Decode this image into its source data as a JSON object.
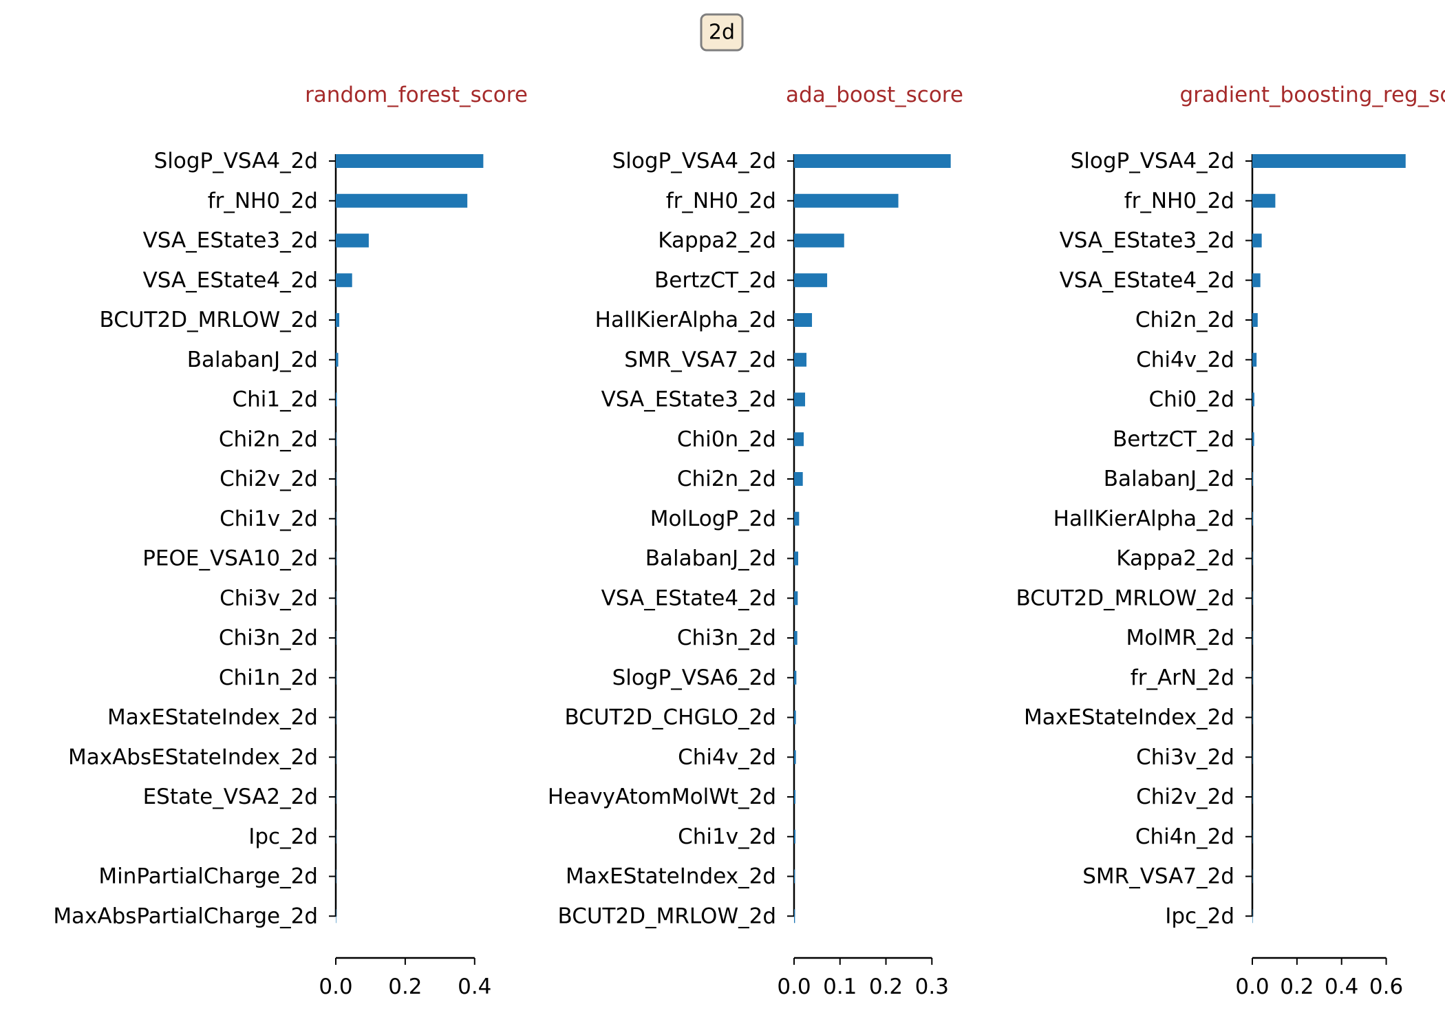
{
  "figure": {
    "badge_label": "2d",
    "colors": {
      "bar": "#1f77b4",
      "title": "#a52a2a",
      "axis": "#000000",
      "badge_fill": "#f7ead3",
      "badge_stroke": "#7f7f7f"
    }
  },
  "chart_data": [
    {
      "type": "bar",
      "orientation": "horizontal",
      "title": "random_forest_score",
      "xlabel": "",
      "ylabel": "",
      "xlim": [
        0,
        0.45
      ],
      "xticks": [
        "0.0",
        "0.2",
        "0.4"
      ],
      "xtick_values": [
        0,
        0.2,
        0.4
      ],
      "grid": false,
      "categories": [
        "SlogP_VSA4_2d",
        "fr_NH0_2d",
        "VSA_EState3_2d",
        "VSA_EState4_2d",
        "BCUT2D_MRLOW_2d",
        "BalabanJ_2d",
        "Chi1_2d",
        "Chi2n_2d",
        "Chi2v_2d",
        "Chi1v_2d",
        "PEOE_VSA10_2d",
        "Chi3v_2d",
        "Chi3n_2d",
        "Chi1n_2d",
        "MaxEStateIndex_2d",
        "MaxAbsEStateIndex_2d",
        "EState_VSA2_2d",
        "Ipc_2d",
        "MinPartialCharge_2d",
        "MaxAbsPartialCharge_2d"
      ],
      "values": [
        0.425,
        0.379,
        0.095,
        0.047,
        0.01,
        0.007,
        0.003,
        0.0015,
        0.001,
        0.001,
        0.0008,
        0.0006,
        0.0005,
        0.0004,
        0.0003,
        0.0003,
        0.0002,
        0.0002,
        0.0001,
        0.0001
      ]
    },
    {
      "type": "bar",
      "orientation": "horizontal",
      "title": "ada_boost_score",
      "xlabel": "",
      "ylabel": "",
      "xlim": [
        0,
        0.34
      ],
      "xticks": [
        "0.0",
        "0.1",
        "0.2",
        "0.3"
      ],
      "xtick_values": [
        0,
        0.1,
        0.2,
        0.3
      ],
      "grid": false,
      "categories": [
        "SlogP_VSA4_2d",
        "fr_NH0_2d",
        "Kappa2_2d",
        "BertzCT_2d",
        "HallKierAlpha_2d",
        "SMR_VSA7_2d",
        "VSA_EState3_2d",
        "Chi0n_2d",
        "Chi2n_2d",
        "MolLogP_2d",
        "BalabanJ_2d",
        "VSA_EState4_2d",
        "Chi3n_2d",
        "SlogP_VSA6_2d",
        "BCUT2D_CHGLO_2d",
        "Chi4v_2d",
        "HeavyAtomMolWt_2d",
        "Chi1v_2d",
        "MaxEStateIndex_2d",
        "BCUT2D_MRLOW_2d"
      ],
      "values": [
        0.341,
        0.227,
        0.109,
        0.072,
        0.039,
        0.027,
        0.024,
        0.021,
        0.019,
        0.011,
        0.009,
        0.008,
        0.007,
        0.005,
        0.004,
        0.004,
        0.003,
        0.003,
        0.002,
        0.002
      ]
    },
    {
      "type": "bar",
      "orientation": "horizontal",
      "title": "gradient_boosting_reg_score",
      "xlabel": "",
      "ylabel": "",
      "xlim": [
        0,
        0.7
      ],
      "xticks": [
        "0.0",
        "0.2",
        "0.4",
        "0.6"
      ],
      "xtick_values": [
        0,
        0.2,
        0.4,
        0.6
      ],
      "grid": false,
      "categories": [
        "SlogP_VSA4_2d",
        "fr_NH0_2d",
        "VSA_EState3_2d",
        "VSA_EState4_2d",
        "Chi2n_2d",
        "Chi4v_2d",
        "Chi0_2d",
        "BertzCT_2d",
        "BalabanJ_2d",
        "HallKierAlpha_2d",
        "Kappa2_2d",
        "BCUT2D_MRLOW_2d",
        "MolMR_2d",
        "fr_ArN_2d",
        "MaxEStateIndex_2d",
        "Chi3v_2d",
        "Chi2v_2d",
        "Chi4n_2d",
        "SMR_VSA7_2d",
        "Ipc_2d"
      ],
      "values": [
        0.687,
        0.103,
        0.042,
        0.036,
        0.024,
        0.019,
        0.009,
        0.008,
        0.003,
        0.003,
        0.002,
        0.002,
        0.002,
        0.002,
        0.001,
        0.001,
        0.001,
        0.001,
        0.001,
        0.001
      ]
    }
  ]
}
